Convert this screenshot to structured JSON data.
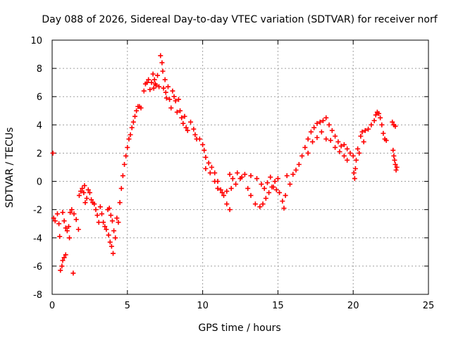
{
  "chart_data": {
    "type": "scatter",
    "title": "Day 088 of 2026, Sidereal Day-to-day VTEC variation (SDTVAR) for receiver norf",
    "xlabel": "GPS time / hours",
    "ylabel": "SDTVAR / TECUs",
    "xlim": [
      0,
      25
    ],
    "ylim": [
      -8,
      10
    ],
    "xticks": [
      0,
      5,
      10,
      15,
      20,
      25
    ],
    "yticks": [
      -8,
      -6,
      -4,
      -2,
      0,
      2,
      4,
      6,
      8,
      10
    ],
    "grid": true,
    "marker": "+",
    "color": "#ff0000",
    "series": [
      {
        "name": "SDTVAR",
        "points": [
          [
            0.05,
            2.0
          ],
          [
            0.1,
            -2.6
          ],
          [
            0.2,
            -2.8
          ],
          [
            0.35,
            -2.3
          ],
          [
            0.45,
            -3.0
          ],
          [
            0.5,
            -3.9
          ],
          [
            0.55,
            -6.3
          ],
          [
            0.65,
            -6.0
          ],
          [
            0.7,
            -5.6
          ],
          [
            0.8,
            -5.4
          ],
          [
            0.9,
            -5.2
          ],
          [
            0.7,
            -2.2
          ],
          [
            0.8,
            -2.8
          ],
          [
            0.9,
            -3.3
          ],
          [
            1.0,
            -3.5
          ],
          [
            1.1,
            -3.2
          ],
          [
            1.15,
            -4.0
          ],
          [
            1.2,
            -2.2
          ],
          [
            1.3,
            -2.0
          ],
          [
            1.4,
            -6.5
          ],
          [
            1.45,
            -2.3
          ],
          [
            1.6,
            -2.7
          ],
          [
            1.75,
            -3.4
          ],
          [
            1.8,
            -1.0
          ],
          [
            1.9,
            -0.7
          ],
          [
            2.0,
            -0.5
          ],
          [
            2.1,
            -0.8
          ],
          [
            2.15,
            -0.3
          ],
          [
            2.2,
            -1.5
          ],
          [
            2.3,
            -1.2
          ],
          [
            2.4,
            -0.6
          ],
          [
            2.5,
            -0.8
          ],
          [
            2.6,
            -1.3
          ],
          [
            2.7,
            -1.5
          ],
          [
            2.8,
            -1.6
          ],
          [
            2.9,
            -2.0
          ],
          [
            3.0,
            -2.4
          ],
          [
            3.1,
            -2.9
          ],
          [
            3.2,
            -1.8
          ],
          [
            3.3,
            -2.3
          ],
          [
            3.4,
            -2.9
          ],
          [
            3.5,
            -3.2
          ],
          [
            3.6,
            -3.4
          ],
          [
            3.7,
            -2.0
          ],
          [
            3.75,
            -3.8
          ],
          [
            3.8,
            -1.9
          ],
          [
            3.85,
            -4.3
          ],
          [
            3.9,
            -2.4
          ],
          [
            3.95,
            -4.6
          ],
          [
            4.0,
            -2.8
          ],
          [
            4.05,
            -5.1
          ],
          [
            4.1,
            -3.5
          ],
          [
            4.2,
            -4.0
          ],
          [
            4.3,
            -2.6
          ],
          [
            4.4,
            -2.9
          ],
          [
            4.5,
            -1.5
          ],
          [
            4.6,
            -0.5
          ],
          [
            4.7,
            0.4
          ],
          [
            4.8,
            1.2
          ],
          [
            4.9,
            1.8
          ],
          [
            5.0,
            2.4
          ],
          [
            5.1,
            3.0
          ],
          [
            5.2,
            3.3
          ],
          [
            5.3,
            3.8
          ],
          [
            5.4,
            4.2
          ],
          [
            5.5,
            4.6
          ],
          [
            5.6,
            5.0
          ],
          [
            5.7,
            5.3
          ],
          [
            5.8,
            5.3
          ],
          [
            5.9,
            5.2
          ],
          [
            6.1,
            6.4
          ],
          [
            6.2,
            6.9
          ],
          [
            6.3,
            7.0
          ],
          [
            6.4,
            7.2
          ],
          [
            6.5,
            6.5
          ],
          [
            6.6,
            7.0
          ],
          [
            6.7,
            7.6
          ],
          [
            6.75,
            6.6
          ],
          [
            6.8,
            7.2
          ],
          [
            6.85,
            6.9
          ],
          [
            6.9,
            6.8
          ],
          [
            7.0,
            7.5
          ],
          [
            7.1,
            6.7
          ],
          [
            7.2,
            8.9
          ],
          [
            7.3,
            8.4
          ],
          [
            7.35,
            7.8
          ],
          [
            7.4,
            6.6
          ],
          [
            7.5,
            7.2
          ],
          [
            7.55,
            6.3
          ],
          [
            7.6,
            5.9
          ],
          [
            7.7,
            6.7
          ],
          [
            7.8,
            5.8
          ],
          [
            7.9,
            5.2
          ],
          [
            8.0,
            6.4
          ],
          [
            8.1,
            6.0
          ],
          [
            8.2,
            5.7
          ],
          [
            8.3,
            4.9
          ],
          [
            8.4,
            5.8
          ],
          [
            8.5,
            5.0
          ],
          [
            8.6,
            4.5
          ],
          [
            8.7,
            4.1
          ],
          [
            8.8,
            4.6
          ],
          [
            8.9,
            3.8
          ],
          [
            9.0,
            3.6
          ],
          [
            9.2,
            4.2
          ],
          [
            9.4,
            3.7
          ],
          [
            9.5,
            3.3
          ],
          [
            9.6,
            3.0
          ],
          [
            9.8,
            3.0
          ],
          [
            10.0,
            2.6
          ],
          [
            10.1,
            2.2
          ],
          [
            10.2,
            1.7
          ],
          [
            10.4,
            1.3
          ],
          [
            10.6,
            1.0
          ],
          [
            10.8,
            0.6
          ],
          [
            11.0,
            0.0
          ],
          [
            11.2,
            -0.6
          ],
          [
            11.4,
            -1.0
          ],
          [
            11.6,
            -1.6
          ],
          [
            11.8,
            -2.0
          ],
          [
            10.2,
            0.9
          ],
          [
            10.5,
            0.6
          ],
          [
            10.8,
            0.0
          ],
          [
            11.0,
            -0.5
          ],
          [
            11.3,
            -0.8
          ],
          [
            11.6,
            -0.7
          ],
          [
            11.9,
            -0.5
          ],
          [
            12.2,
            -0.2
          ],
          [
            12.5,
            0.2
          ],
          [
            12.8,
            0.5
          ],
          [
            13.2,
            0.4
          ],
          [
            11.8,
            0.5
          ],
          [
            12.0,
            0.2
          ],
          [
            12.3,
            0.6
          ],
          [
            12.6,
            0.3
          ],
          [
            13.0,
            -0.5
          ],
          [
            13.2,
            -1.0
          ],
          [
            13.5,
            -1.6
          ],
          [
            13.8,
            -1.8
          ],
          [
            14.0,
            -1.6
          ],
          [
            14.2,
            -1.2
          ],
          [
            14.4,
            -0.8
          ],
          [
            14.6,
            -0.4
          ],
          [
            14.8,
            0.0
          ],
          [
            15.0,
            0.2
          ],
          [
            13.6,
            0.2
          ],
          [
            13.9,
            -0.2
          ],
          [
            14.1,
            -0.5
          ],
          [
            14.3,
            -0.1
          ],
          [
            14.5,
            0.3
          ],
          [
            14.7,
            -0.4
          ],
          [
            14.9,
            -0.6
          ],
          [
            15.1,
            -0.8
          ],
          [
            15.3,
            -1.4
          ],
          [
            15.4,
            -1.9
          ],
          [
            15.5,
            -1.0
          ],
          [
            15.6,
            0.4
          ],
          [
            15.8,
            -0.2
          ],
          [
            16.0,
            0.5
          ],
          [
            16.2,
            0.8
          ],
          [
            16.4,
            1.2
          ],
          [
            16.6,
            1.8
          ],
          [
            16.8,
            2.4
          ],
          [
            17.0,
            3.0
          ],
          [
            17.2,
            3.5
          ],
          [
            17.4,
            3.8
          ],
          [
            17.6,
            4.1
          ],
          [
            17.8,
            4.2
          ],
          [
            18.0,
            4.3
          ],
          [
            18.2,
            4.5
          ],
          [
            18.4,
            4.0
          ],
          [
            18.6,
            3.6
          ],
          [
            18.8,
            3.2
          ],
          [
            19.0,
            2.8
          ],
          [
            19.2,
            2.5
          ],
          [
            17.0,
            2.0
          ],
          [
            17.3,
            2.8
          ],
          [
            17.6,
            3.1
          ],
          [
            17.9,
            3.5
          ],
          [
            18.2,
            3.0
          ],
          [
            18.5,
            2.9
          ],
          [
            18.8,
            2.4
          ],
          [
            19.1,
            2.1
          ],
          [
            19.4,
            1.8
          ],
          [
            19.6,
            1.5
          ],
          [
            19.4,
            2.6
          ],
          [
            19.6,
            2.3
          ],
          [
            19.8,
            2.0
          ],
          [
            20.0,
            1.8
          ],
          [
            20.05,
            0.6
          ],
          [
            20.1,
            0.2
          ],
          [
            20.15,
            0.9
          ],
          [
            20.2,
            1.5
          ],
          [
            20.3,
            2.3
          ],
          [
            20.4,
            2.0
          ],
          [
            20.5,
            3.2
          ],
          [
            20.6,
            3.5
          ],
          [
            20.7,
            2.8
          ],
          [
            20.8,
            3.6
          ],
          [
            21.0,
            3.7
          ],
          [
            21.2,
            4.0
          ],
          [
            21.4,
            4.3
          ],
          [
            21.5,
            4.7
          ],
          [
            21.6,
            4.9
          ],
          [
            21.7,
            4.8
          ],
          [
            21.8,
            4.5
          ],
          [
            21.9,
            4.0
          ],
          [
            22.0,
            3.4
          ],
          [
            22.1,
            3.0
          ],
          [
            22.2,
            2.9
          ],
          [
            22.6,
            4.2
          ],
          [
            22.7,
            4.0
          ],
          [
            22.8,
            3.9
          ],
          [
            22.65,
            2.2
          ],
          [
            22.7,
            1.8
          ],
          [
            22.75,
            1.5
          ],
          [
            22.8,
            1.2
          ],
          [
            22.85,
            0.8
          ],
          [
            22.9,
            1.0
          ]
        ]
      }
    ]
  }
}
